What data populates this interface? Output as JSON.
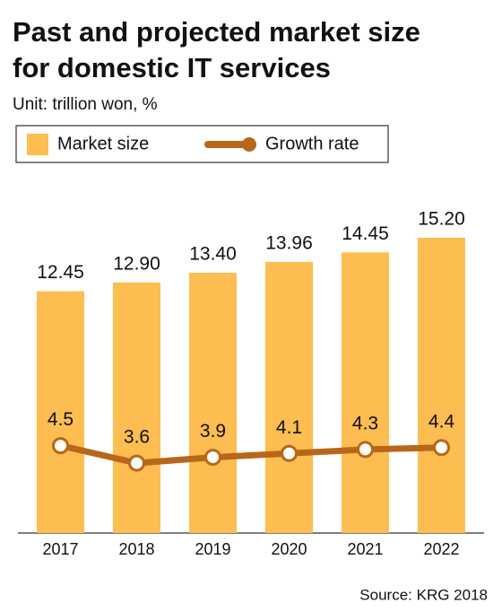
{
  "chart_data": {
    "type": "combo",
    "title": [
      "Past and projected market size",
      "for domestic IT services"
    ],
    "subtitle": "Unit: trillion won, %",
    "categories": [
      "2017",
      "2018",
      "2019",
      "2020",
      "2021",
      "2022"
    ],
    "series": [
      {
        "name": "Market size",
        "type": "bar",
        "color": "#fdbd50",
        "values": [
          12.45,
          12.9,
          13.4,
          13.96,
          14.45,
          15.2
        ],
        "value_labels": [
          "12.45",
          "12.90",
          "13.40",
          "13.96",
          "14.45",
          "15.20"
        ]
      },
      {
        "name": "Growth rate",
        "type": "line",
        "color": "#b8671a",
        "values": [
          4.5,
          3.6,
          3.9,
          4.1,
          4.3,
          4.4
        ]
      }
    ],
    "source": "Source: KRG 2018"
  }
}
